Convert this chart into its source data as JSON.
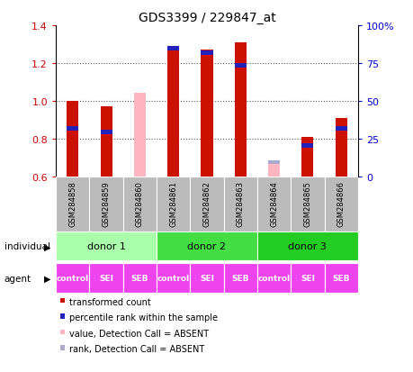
{
  "title": "GDS3399 / 229847_at",
  "samples": [
    "GSM284858",
    "GSM284859",
    "GSM284860",
    "GSM284861",
    "GSM284862",
    "GSM284863",
    "GSM284864",
    "GSM284865",
    "GSM284866"
  ],
  "red_values": [
    1.0,
    0.97,
    null,
    1.29,
    1.27,
    1.31,
    null,
    0.81,
    0.91
  ],
  "blue_values": [
    0.865,
    0.845,
    null,
    1.29,
    1.265,
    1.2,
    null,
    0.775,
    0.865
  ],
  "pink_values": [
    null,
    null,
    1.04,
    null,
    null,
    null,
    0.685,
    null,
    null
  ],
  "lightblue_values": [
    null,
    null,
    null,
    null,
    null,
    null,
    0.685,
    null,
    null
  ],
  "ylim": [
    0.6,
    1.4
  ],
  "yticks_left": [
    0.6,
    0.8,
    1.0,
    1.2,
    1.4
  ],
  "yticks_right": [
    0,
    25,
    50,
    75,
    100
  ],
  "yticks_right_labels": [
    "0",
    "25",
    "50",
    "75",
    "100%"
  ],
  "donors": [
    {
      "label": "donor 1",
      "start": 0,
      "end": 3,
      "color": "#AAFFAA"
    },
    {
      "label": "donor 2",
      "start": 3,
      "end": 6,
      "color": "#44DD44"
    },
    {
      "label": "donor 3",
      "start": 6,
      "end": 9,
      "color": "#22CC22"
    }
  ],
  "agents": [
    "control",
    "SEI",
    "SEB",
    "control",
    "SEI",
    "SEB",
    "control",
    "SEI",
    "SEB"
  ],
  "agent_color": "#EE44EE",
  "bar_width": 0.35,
  "red_color": "#CC1100",
  "blue_color": "#2222BB",
  "absent_red_color": "#FFB6C1",
  "absent_blue_color": "#AAAACC",
  "grid_color": "#555555",
  "bg_color": "#FFFFFF",
  "label_color_red": "#CC0000",
  "label_color_blue": "#0000CC",
  "sample_bg": "#BBBBBB"
}
